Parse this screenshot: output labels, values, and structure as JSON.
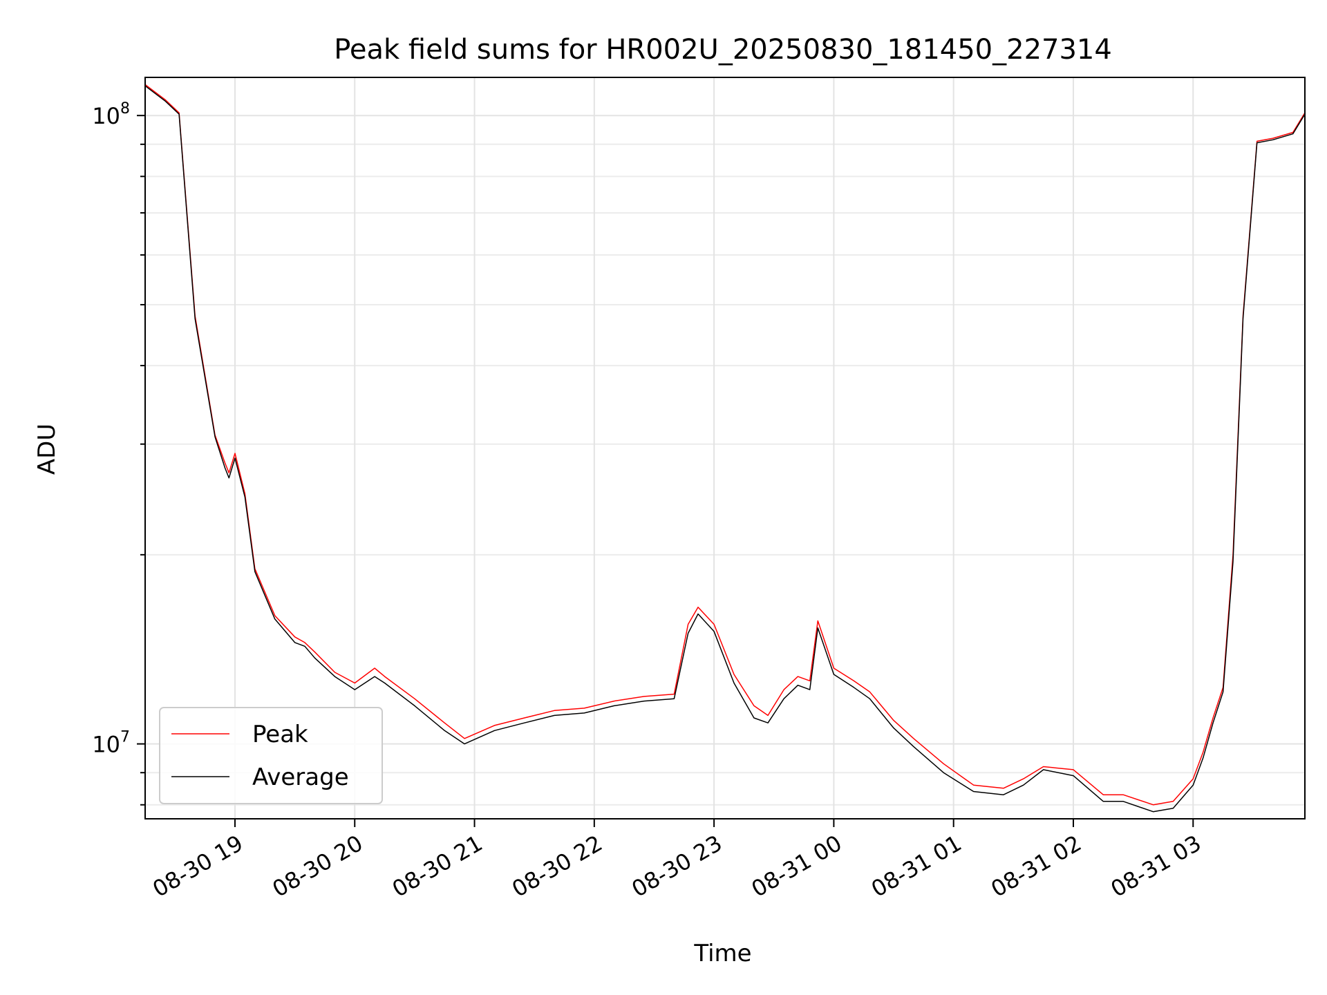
{
  "chart_data": {
    "type": "line",
    "title": "Peak field sums for HR002U_20250830_181450_227314",
    "xlabel": "Time",
    "ylabel": "ADU",
    "yscale": "log",
    "ylim": [
      7600000,
      115000000
    ],
    "xlim": [
      "2025-08-30T18:15",
      "2025-08-31T03:56"
    ],
    "x_ticks": [
      "08-30 19",
      "08-30 20",
      "08-30 21",
      "08-30 22",
      "08-30 23",
      "08-31 00",
      "08-31 01",
      "08-31 02",
      "08-31 03"
    ],
    "x_tick_values": [
      "2025-08-30T19:00",
      "2025-08-30T20:00",
      "2025-08-30T21:00",
      "2025-08-30T22:00",
      "2025-08-30T23:00",
      "2025-08-31T00:00",
      "2025-08-31T01:00",
      "2025-08-31T02:00",
      "2025-08-31T03:00"
    ],
    "y_ticks": [
      {
        "label_base": "10",
        "label_exp": "7",
        "value": 10000000
      },
      {
        "label_base": "10",
        "label_exp": "8",
        "value": 100000000
      }
    ],
    "grid": true,
    "legend_position": "lower-left",
    "x": [
      "2025-08-30T18:15",
      "2025-08-30T18:25",
      "2025-08-30T18:32",
      "2025-08-30T18:40",
      "2025-08-30T18:50",
      "2025-08-30T18:55",
      "2025-08-30T18:57",
      "2025-08-30T19:00",
      "2025-08-30T19:05",
      "2025-08-30T19:10",
      "2025-08-30T19:20",
      "2025-08-30T19:30",
      "2025-08-30T19:35",
      "2025-08-30T19:40",
      "2025-08-30T19:50",
      "2025-08-30T20:00",
      "2025-08-30T20:10",
      "2025-08-30T20:15",
      "2025-08-30T20:30",
      "2025-08-30T20:45",
      "2025-08-30T20:55",
      "2025-08-30T21:10",
      "2025-08-30T21:25",
      "2025-08-30T21:40",
      "2025-08-30T21:55",
      "2025-08-30T22:10",
      "2025-08-30T22:25",
      "2025-08-30T22:40",
      "2025-08-30T22:47",
      "2025-08-30T22:52",
      "2025-08-30T23:00",
      "2025-08-30T23:10",
      "2025-08-30T23:20",
      "2025-08-30T23:27",
      "2025-08-30T23:35",
      "2025-08-30T23:42",
      "2025-08-30T23:48",
      "2025-08-30T23:52",
      "2025-08-31T00:00",
      "2025-08-31T00:10",
      "2025-08-31T00:18",
      "2025-08-31T00:30",
      "2025-08-31T00:40",
      "2025-08-31T00:55",
      "2025-08-31T01:10",
      "2025-08-31T01:25",
      "2025-08-31T01:35",
      "2025-08-31T01:45",
      "2025-08-31T02:00",
      "2025-08-31T02:15",
      "2025-08-31T02:25",
      "2025-08-31T02:40",
      "2025-08-31T02:50",
      "2025-08-31T03:00",
      "2025-08-31T03:05",
      "2025-08-31T03:10",
      "2025-08-31T03:15",
      "2025-08-31T03:20",
      "2025-08-31T03:25",
      "2025-08-31T03:32",
      "2025-08-31T03:40",
      "2025-08-31T03:50",
      "2025-08-31T03:56"
    ],
    "series": [
      {
        "name": "Peak",
        "color": "#ff0000",
        "values": [
          112000000,
          106000000,
          101000000,
          48000000,
          31000000,
          28000000,
          27000000,
          29000000,
          25000000,
          19000000,
          16000000,
          14800000,
          14500000,
          14000000,
          13000000,
          12500000,
          13200000,
          12800000,
          11800000,
          10800000,
          10200000,
          10700000,
          11000000,
          11300000,
          11400000,
          11700000,
          11900000,
          12000000,
          15500000,
          16500000,
          15500000,
          12900000,
          11500000,
          11100000,
          12200000,
          12800000,
          12600000,
          15700000,
          13200000,
          12600000,
          12100000,
          10900000,
          10200000,
          9300000,
          8600000,
          8500000,
          8800000,
          9200000,
          9100000,
          8300000,
          8300000,
          8000000,
          8100000,
          8800000,
          9700000,
          11000000,
          12300000,
          20000000,
          48000000,
          91000000,
          92000000,
          94000000,
          101000000
        ]
      },
      {
        "name": "Average",
        "color": "#000000",
        "values": [
          111500000,
          105500000,
          100500000,
          47500000,
          30800000,
          27500000,
          26500000,
          28500000,
          24700000,
          18800000,
          15800000,
          14500000,
          14300000,
          13700000,
          12800000,
          12200000,
          12800000,
          12500000,
          11500000,
          10500000,
          10000000,
          10500000,
          10800000,
          11100000,
          11200000,
          11500000,
          11700000,
          11800000,
          15000000,
          16100000,
          15100000,
          12500000,
          11000000,
          10800000,
          11800000,
          12400000,
          12200000,
          15300000,
          12900000,
          12300000,
          11800000,
          10600000,
          9900000,
          9000000,
          8400000,
          8300000,
          8600000,
          9100000,
          8900000,
          8100000,
          8100000,
          7800000,
          7900000,
          8600000,
          9500000,
          10800000,
          12100000,
          19500000,
          47500000,
          90500000,
          91500000,
          93500000,
          100500000
        ]
      }
    ]
  }
}
